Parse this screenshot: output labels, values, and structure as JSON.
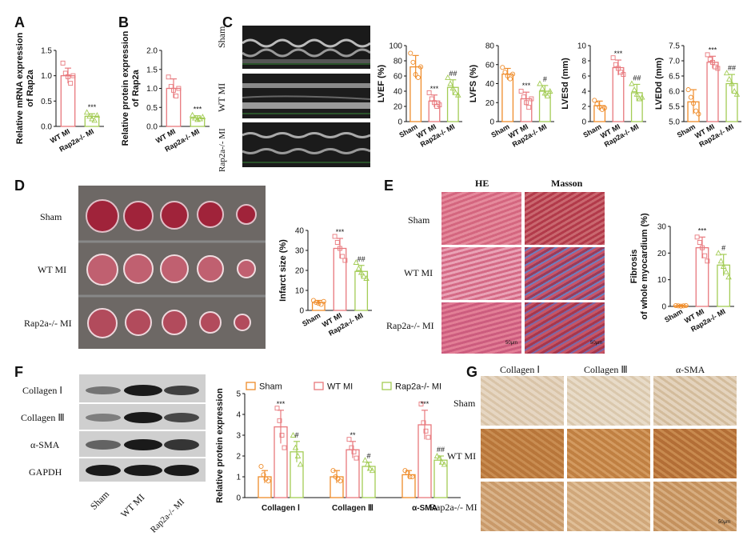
{
  "panels": {
    "A": "A",
    "B": "B",
    "C": "C",
    "D": "D",
    "E": "E",
    "F": "F",
    "G": "G"
  },
  "colors": {
    "sham": "#f28e2b",
    "wt": "#f4a3a3",
    "ko": "#b5d96b",
    "wt_edge": "#e8787d",
    "ko_edge": "#a3cc55",
    "sham_edge": "#ef8c2a"
  },
  "echo": {
    "rows": [
      "Sham",
      "WT MI",
      "Rap2a-/- MI"
    ]
  },
  "tissue": {
    "rows": [
      "Sham",
      "WT MI",
      "Rap2a-/- MI"
    ]
  },
  "histo": {
    "columns": [
      "HE",
      "Masson"
    ],
    "rows": [
      "Sham",
      "WT MI",
      "Rap2a-/- MI"
    ],
    "scale": "50μm"
  },
  "blot": {
    "rows": [
      "Collagen Ⅰ",
      "Collagen Ⅲ",
      "α-SMA",
      "GAPDH"
    ],
    "lanes": [
      "Sham",
      "WT MI",
      "Rap2a-/- MI"
    ]
  },
  "ihc": {
    "columns": [
      "Collagen Ⅰ",
      "Collagen Ⅲ",
      "α-SMA"
    ],
    "rows": [
      "Sham",
      "WT MI",
      "Rap2a-/- MI"
    ],
    "scale": "50μm"
  },
  "chart_data": [
    {
      "id": "A",
      "type": "bar",
      "ylabel": "Relative mRNA expression of Rap2a",
      "categories": [
        "WT MI",
        "Rap2a-/- MI"
      ],
      "values": [
        1.0,
        0.2
      ],
      "errors": [
        0.15,
        0.05
      ],
      "points": [
        [
          1.25,
          1.05,
          0.98,
          0.85,
          1.0
        ],
        [
          0.28,
          0.2,
          0.15,
          0.12,
          0.22
        ]
      ],
      "ylim": [
        0,
        1.5
      ],
      "yticks": [
        0.0,
        0.5,
        1.0,
        1.5
      ],
      "sig": [
        "",
        "***"
      ]
    },
    {
      "id": "B",
      "type": "bar",
      "ylabel": "Relative protein expression of Rap2a",
      "categories": [
        "WT MI",
        "Rap2a-/- MI"
      ],
      "values": [
        1.0,
        0.22
      ],
      "errors": [
        0.25,
        0.06
      ],
      "points": [
        [
          1.3,
          1.05,
          0.95,
          0.8,
          1.0
        ],
        [
          0.3,
          0.22,
          0.18,
          0.2,
          0.25
        ]
      ],
      "ylim": [
        0,
        2.0
      ],
      "yticks": [
        0.0,
        0.5,
        1.0,
        1.5,
        2.0
      ],
      "sig": [
        "",
        "***"
      ]
    },
    {
      "id": "C1",
      "type": "bar",
      "ylabel": "LVEF (%)",
      "categories": [
        "Sham",
        "WT MI",
        "Rap2a-/- MI"
      ],
      "values": [
        72,
        27,
        45
      ],
      "errors": [
        15,
        8,
        10
      ],
      "points": [
        [
          90,
          78,
          62,
          58,
          72
        ],
        [
          38,
          30,
          25,
          20,
          22
        ],
        [
          58,
          50,
          44,
          38,
          35
        ]
      ],
      "ylim": [
        0,
        100
      ],
      "yticks": [
        0,
        20,
        40,
        60,
        80,
        100
      ],
      "sig": [
        "",
        "***",
        "##"
      ]
    },
    {
      "id": "C2",
      "type": "bar",
      "ylabel": "LVFS (%)",
      "categories": [
        "Sham",
        "WT MI",
        "Rap2a-/- MI"
      ],
      "values": [
        50,
        24,
        32
      ],
      "errors": [
        6,
        7,
        6
      ],
      "points": [
        [
          57,
          52,
          48,
          45,
          50
        ],
        [
          32,
          26,
          20,
          15,
          24
        ],
        [
          40,
          35,
          30,
          27,
          32
        ]
      ],
      "ylim": [
        0,
        80
      ],
      "yticks": [
        0,
        20,
        40,
        60,
        80
      ],
      "sig": [
        "",
        "***",
        "#"
      ]
    },
    {
      "id": "C3",
      "type": "bar",
      "ylabel": "LVESd (mm)",
      "categories": [
        "Sham",
        "WT MI",
        "Rap2a-/- MI"
      ],
      "values": [
        2.1,
        7.1,
        3.8
      ],
      "errors": [
        0.6,
        1.0,
        1.1
      ],
      "points": [
        [
          2.8,
          2.3,
          1.9,
          1.6,
          1.8
        ],
        [
          8.4,
          7.5,
          7.0,
          6.5,
          6.2
        ],
        [
          5.0,
          4.2,
          3.6,
          3.0,
          3.2
        ]
      ],
      "ylim": [
        0,
        10
      ],
      "yticks": [
        0,
        2,
        4,
        6,
        8,
        10
      ],
      "sig": [
        "",
        "***",
        "##"
      ]
    },
    {
      "id": "C4",
      "type": "bar",
      "ylabel": "LVEDd (mm)",
      "categories": [
        "Sham",
        "WT MI",
        "Rap2a-/- MI"
      ],
      "values": [
        5.65,
        6.95,
        6.25
      ],
      "errors": [
        0.4,
        0.2,
        0.3
      ],
      "points": [
        [
          6.05,
          5.8,
          5.6,
          5.35,
          5.25
        ],
        [
          7.2,
          7.05,
          6.95,
          6.8,
          6.75
        ],
        [
          6.6,
          6.4,
          6.25,
          6.0,
          5.9
        ]
      ],
      "ylim": [
        5.0,
        7.5
      ],
      "yticks": [
        5.0,
        5.5,
        6.0,
        6.5,
        7.0,
        7.5
      ],
      "sig": [
        "",
        "***",
        "##"
      ]
    },
    {
      "id": "D",
      "type": "bar",
      "ylabel": "Infarct size (%)",
      "categories": [
        "Sham",
        "WT MI",
        "Rap2a-/- MI"
      ],
      "values": [
        4,
        31,
        19.5
      ],
      "errors": [
        1,
        5,
        3
      ],
      "points": [
        [
          5,
          4,
          3.5,
          3,
          4.5
        ],
        [
          37,
          34,
          31,
          27,
          25
        ],
        [
          24,
          21,
          19,
          17,
          16
        ]
      ],
      "ylim": [
        0,
        40
      ],
      "yticks": [
        0,
        10,
        20,
        30,
        40
      ],
      "sig": [
        "",
        "***",
        "##"
      ]
    },
    {
      "id": "E",
      "type": "bar",
      "ylabel": "Fibrosis of whole myocardium (%)",
      "categories": [
        "Sham",
        "WT MI",
        "Rap2a-/- MI"
      ],
      "values": [
        0.2,
        22,
        15.5
      ],
      "errors": [
        0.2,
        4,
        4
      ],
      "points": [
        [
          0.3,
          0.2,
          0.1,
          0.2,
          0.3
        ],
        [
          26,
          24,
          22,
          19,
          17
        ],
        [
          20,
          17,
          15,
          13,
          11
        ]
      ],
      "ylim": [
        0,
        30
      ],
      "yticks": [
        0,
        10,
        20,
        30
      ],
      "sig": [
        "",
        "***",
        "#"
      ]
    },
    {
      "id": "F",
      "type": "bar",
      "ylabel": "Relative protein expression",
      "groups": [
        "Collagen Ⅰ",
        "Collagen Ⅲ",
        "α-SMA"
      ],
      "legend": [
        "Sham",
        "WT MI",
        "Rap2a-/- MI"
      ],
      "series": [
        {
          "name": "Sham",
          "values": [
            1.0,
            1.0,
            1.1
          ],
          "errors": [
            0.3,
            0.3,
            0.2
          ],
          "points": [
            [
              1.5,
              1.1,
              0.9,
              0.8
            ],
            [
              1.3,
              1.0,
              0.9,
              0.8
            ],
            [
              1.3,
              1.2,
              1.0,
              1.0
            ]
          ]
        },
        {
          "name": "WT MI",
          "values": [
            3.4,
            2.3,
            3.5
          ],
          "errors": [
            0.8,
            0.4,
            0.7
          ],
          "points": [
            [
              4.3,
              3.7,
              3.0,
              2.4
            ],
            [
              2.8,
              2.4,
              2.2,
              1.9
            ],
            [
              4.5,
              3.6,
              3.2,
              2.9
            ]
          ]
        },
        {
          "name": "Rap2a-/- MI",
          "values": [
            2.2,
            1.5,
            1.8
          ],
          "errors": [
            0.5,
            0.2,
            0.2
          ],
          "points": [
            [
              3.0,
              2.4,
              2.0,
              1.6
            ],
            [
              1.8,
              1.6,
              1.4,
              1.3
            ],
            [
              2.0,
              1.9,
              1.7,
              1.6
            ]
          ]
        }
      ],
      "ylim": [
        0,
        5
      ],
      "yticks": [
        0,
        1,
        2,
        3,
        4,
        5
      ],
      "sig": [
        [
          "",
          "***",
          "#"
        ],
        [
          "",
          "**",
          "#"
        ],
        [
          "",
          "***",
          "##"
        ]
      ]
    }
  ]
}
